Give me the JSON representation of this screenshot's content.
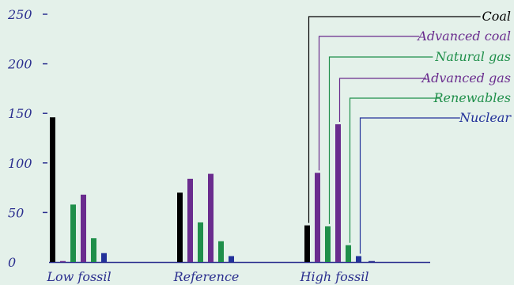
{
  "chart_data": {
    "type": "bar",
    "categories": [
      "Low fossil",
      "Reference",
      "High fossil"
    ],
    "ylim": [
      0,
      250
    ],
    "yticks": [
      0,
      50,
      100,
      150,
      200,
      250
    ],
    "grid": false,
    "legend_position": "top-right",
    "series": [
      {
        "name": "Coal",
        "color": "#000000",
        "values": [
          146,
          70,
          37
        ]
      },
      {
        "name": "Advanced coal",
        "color": "#6a2c8e",
        "values": [
          0,
          84,
          90
        ]
      },
      {
        "name": "Natural gas",
        "color": "#1f8f4a",
        "values": [
          58,
          40,
          36
        ]
      },
      {
        "name": "Advanced gas",
        "color": "#6a2c8e",
        "values": [
          68,
          89,
          139
        ]
      },
      {
        "name": "Renewables",
        "color": "#1f8f4a",
        "values": [
          24,
          21,
          17
        ]
      },
      {
        "name": "Nuclear",
        "color": "#23329a",
        "values": [
          9,
          6,
          6
        ]
      }
    ],
    "title": "",
    "xlabel": "",
    "ylabel": ""
  },
  "colors": {
    "background": "#e4f1ea",
    "axis": "#2b2f8f",
    "text": "#2b2f8f"
  }
}
